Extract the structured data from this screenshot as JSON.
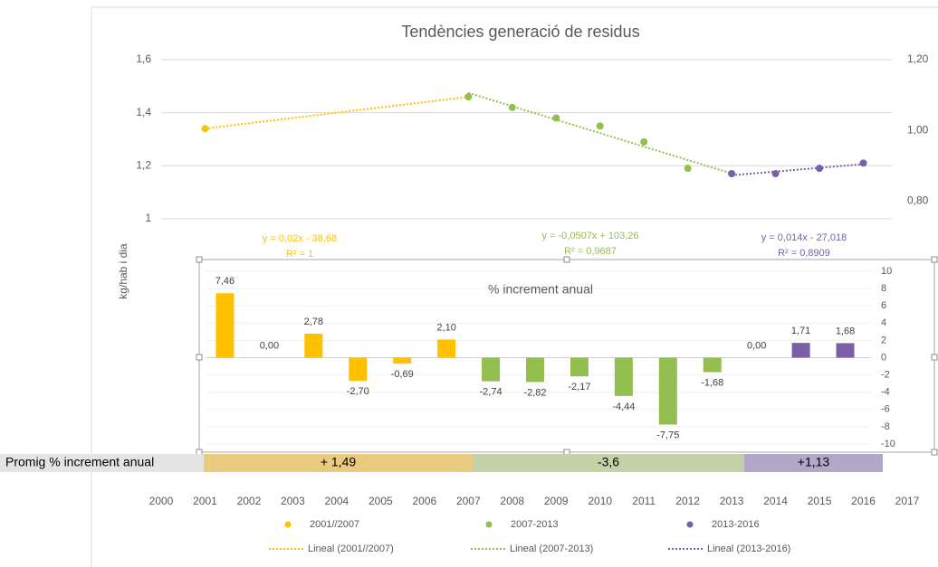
{
  "chart_data": [
    {
      "type": "scatter",
      "title": "Tendències generació de residus",
      "y_label": "kg/hab i dia",
      "xlim": [
        2000,
        2017
      ],
      "xticks": [
        2000,
        2001,
        2002,
        2003,
        2004,
        2005,
        2006,
        2007,
        2008,
        2009,
        2010,
        2011,
        2012,
        2013,
        2014,
        2015,
        2016,
        2017
      ],
      "ylim": [
        0,
        1.6
      ],
      "yticks": [
        1,
        {
          "value": 1.2,
          "label": "1,2"
        },
        {
          "value": 1.4,
          "label": "1,4"
        },
        {
          "value": 1.6,
          "label": "1,6"
        }
      ],
      "y2lim": [
        0,
        1.2
      ],
      "y2ticks": [
        {
          "value": 0.8,
          "label": "0,80"
        },
        {
          "value": 1.0,
          "label": "1,00"
        },
        {
          "value": 1.2,
          "label": "1,20"
        }
      ],
      "grid": true,
      "series": [
        {
          "name": "2001//2007",
          "color": "#ffc000",
          "x": [
            2001,
            2007
          ],
          "values": [
            1.34,
            1.46
          ],
          "trendline": {
            "name": "Lineal (2001//2007)",
            "equation": "y = 0,02x - 38,68",
            "r2": "R² = 1"
          }
        },
        {
          "name": "2007-2013",
          "color": "#92bf4f",
          "x": [
            2007,
            2008,
            2009,
            2010,
            2011,
            2012,
            2013
          ],
          "values": [
            1.46,
            1.42,
            1.38,
            1.35,
            1.29,
            1.19,
            1.17
          ],
          "trendline": {
            "name": "Lineal (2007-2013)",
            "equation": "y = -0,0507x + 103,26",
            "r2": "R² = 0,9687"
          }
        },
        {
          "name": "2013-2016",
          "color": "#7b5ea7",
          "x": [
            2013,
            2014,
            2015,
            2016
          ],
          "values": [
            1.17,
            1.17,
            1.19,
            1.21
          ],
          "trendline": {
            "name": "Lineal (2013-2016)",
            "equation": "y = 0,014x - 27,018",
            "r2": "R² = 0,8909"
          }
        }
      ]
    },
    {
      "type": "bar",
      "title": "% increment anual",
      "values": [
        7.46,
        0.0,
        2.78,
        -2.7,
        -0.69,
        2.1,
        -2.74,
        -2.82,
        -2.17,
        -4.44,
        -7.75,
        -1.68,
        0.0,
        1.71,
        1.68
      ],
      "value_labels": [
        "7,46",
        "0,00",
        "2,78",
        "-2,70",
        "-0,69",
        "2,10",
        "-2,74",
        "-2,82",
        "-2,17",
        "-4,44",
        "-7,75",
        "-1,68",
        "0,00",
        "1,71",
        "1,68"
      ],
      "colors": [
        "#ffc000",
        "#ffc000",
        "#ffc000",
        "#ffc000",
        "#ffc000",
        "#ffc000",
        "#92bf4f",
        "#92bf4f",
        "#92bf4f",
        "#92bf4f",
        "#92bf4f",
        "#92bf4f",
        "#7b5ea7",
        "#7b5ea7",
        "#7b5ea7"
      ],
      "ylim": [
        -10,
        10
      ],
      "yticks": [
        -10,
        -8,
        -6,
        -4,
        -2,
        0,
        2,
        4,
        6,
        8,
        10
      ],
      "grid": true
    }
  ],
  "summary": {
    "label": "Promig % increment anual",
    "cells": [
      {
        "value": 1.49,
        "label": "+ 1,49",
        "color": "#e9ca7f"
      },
      {
        "value": -3.6,
        "label": "-3,6",
        "color": "#c4d1a6"
      },
      {
        "value": 1.13,
        "label": "+1,13",
        "color": "#b4a6c9"
      }
    ]
  }
}
